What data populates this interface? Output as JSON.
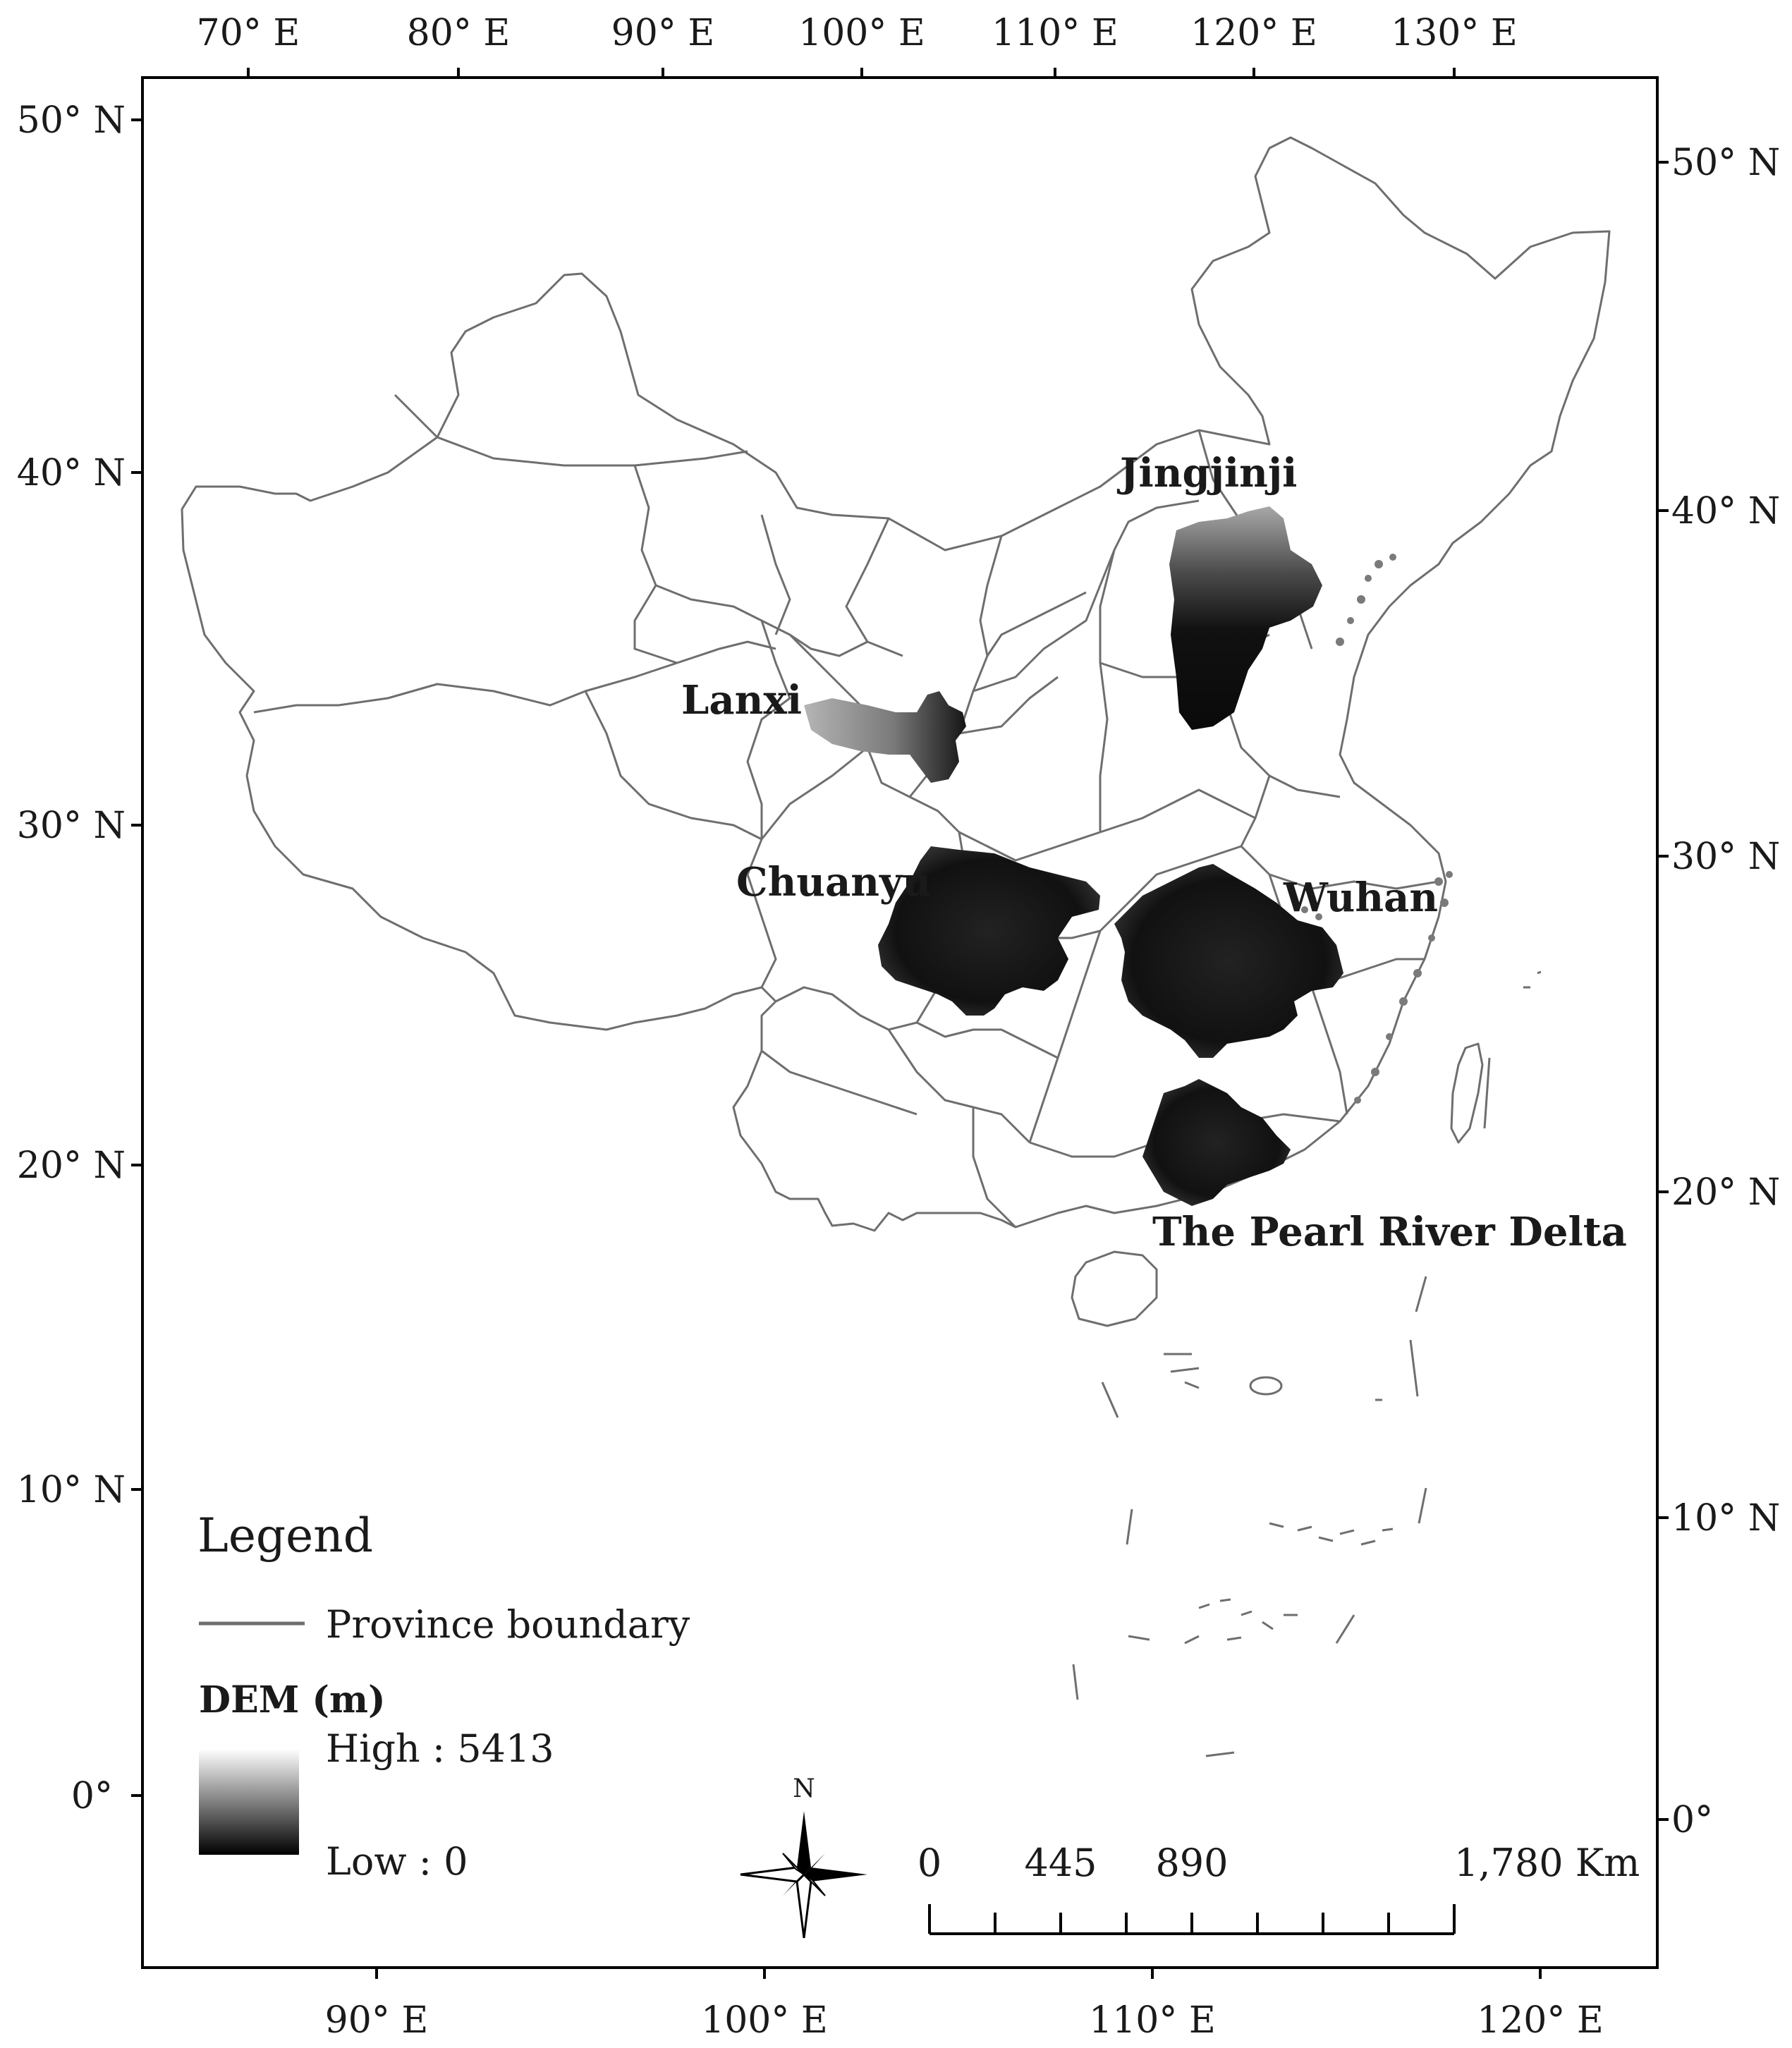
{
  "map": {
    "top_axis_labels": [
      "70° E",
      "80° E",
      "90° E",
      "100° E",
      "110° E",
      "120° E",
      "130° E"
    ],
    "bottom_axis_labels": [
      "90° E",
      "100° E",
      "110° E",
      "120° E"
    ],
    "left_axis_labels": [
      "50° N",
      "40° N",
      "30° N",
      "20° N",
      "10° N",
      "0°"
    ],
    "right_axis_labels": [
      "50° N",
      "40° N",
      "30° N",
      "20° N",
      "10° N",
      "0°"
    ],
    "regions": [
      {
        "name": "Jingjinji"
      },
      {
        "name": "Lanxi"
      },
      {
        "name": "Chuanyu"
      },
      {
        "name": "Wuhan"
      },
      {
        "name": "The Pearl River Delta"
      }
    ]
  },
  "legend": {
    "title": "Legend",
    "boundary_label": "Province boundary",
    "dem_title": "DEM (m)",
    "high_label": "High : 5413",
    "low_label": "Low : 0",
    "boundary_color": "#6e6e6e"
  },
  "north_arrow": {
    "label": "N"
  },
  "scale_bar": {
    "labels": [
      "0",
      "445",
      "890",
      "1,780 Km"
    ]
  }
}
